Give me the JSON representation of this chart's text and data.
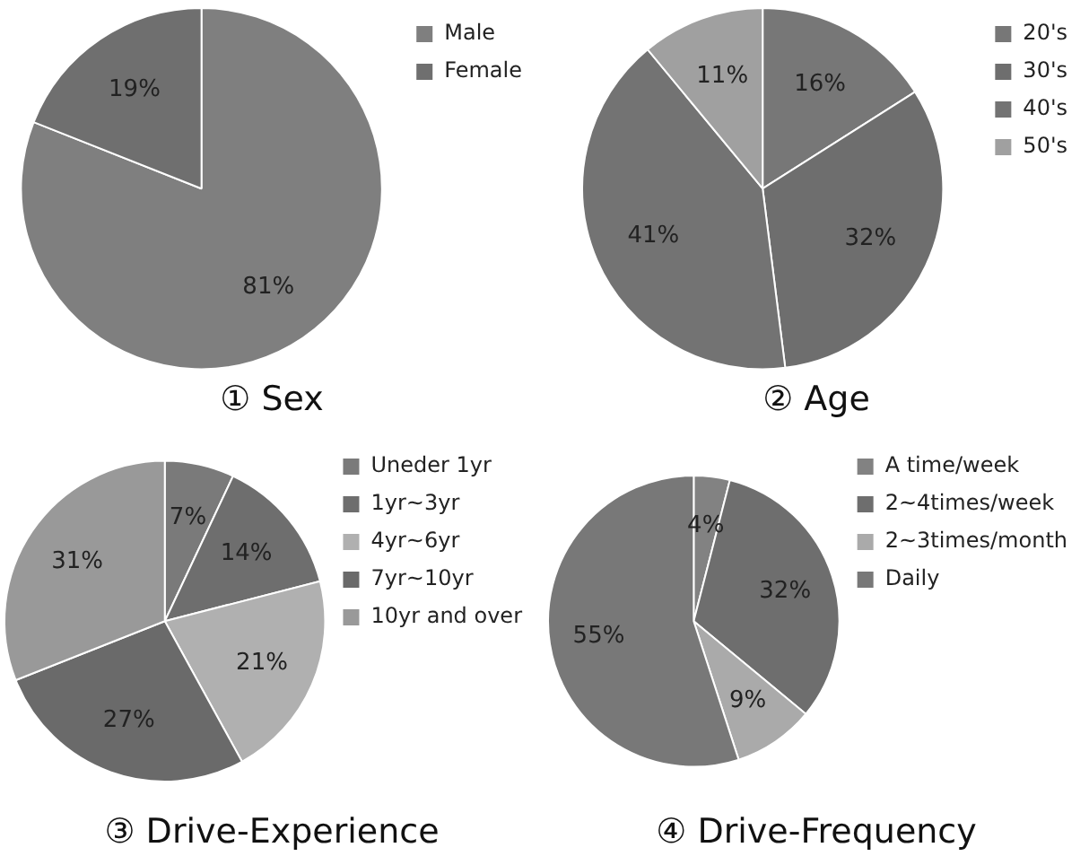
{
  "chart_data": [
    {
      "type": "pie",
      "title": "① Sex",
      "categories": [
        "Male",
        "Female"
      ],
      "values": [
        81,
        19
      ],
      "colors": [
        "#7f7f7f",
        "#6f6f6f"
      ],
      "value_labels": [
        "81%",
        "19%"
      ],
      "legend": "top right"
    },
    {
      "type": "pie",
      "title": "② Age",
      "categories": [
        "20's",
        "30's",
        "40's",
        "50's"
      ],
      "values": [
        16,
        32,
        41,
        11
      ],
      "colors": [
        "#777777",
        "#6e6e6e",
        "#737373",
        "#a0a0a0"
      ],
      "value_labels": [
        "16%",
        "32%",
        "41%",
        "11%"
      ],
      "legend": "top right"
    },
    {
      "type": "pie",
      "title": "③ Drive-Experience",
      "categories": [
        "Uneder 1yr",
        "1yr~3yr",
        "4yr~6yr",
        "7yr~10yr",
        "10yr and over"
      ],
      "values": [
        7,
        14,
        21,
        27,
        31
      ],
      "colors": [
        "#7a7a7a",
        "#6e6e6e",
        "#b0b0b0",
        "#6a6a6a",
        "#999999"
      ],
      "value_labels": [
        "7%",
        "14%",
        "21%",
        "27%",
        "31%"
      ],
      "legend": "top right"
    },
    {
      "type": "pie",
      "title": "④ Drive-Frequency",
      "categories": [
        "A time/week",
        "2~4times/week",
        "2~3times/month",
        "Daily"
      ],
      "values": [
        4,
        32,
        9,
        55
      ],
      "colors": [
        "#828282",
        "#6e6e6e",
        "#aaaaaa",
        "#787878"
      ],
      "value_labels": [
        "4%",
        "32%",
        "9%",
        "55%"
      ],
      "legend": "top right"
    }
  ]
}
